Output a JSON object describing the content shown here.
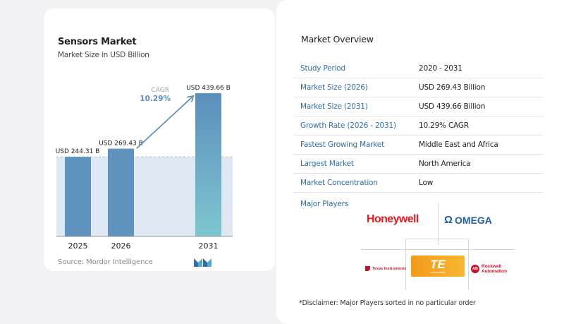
{
  "chart_data": {
    "type": "bar",
    "title": "Sensors Market",
    "subtitle": "Market Size in USD Billion",
    "categories": [
      "2025",
      "2026",
      "2031"
    ],
    "values": [
      244.31,
      269.43,
      439.66
    ],
    "value_labels": [
      "USD 244.31 B",
      "USD 269.43 B",
      "USD 439.66 B"
    ],
    "cagr_label": "CAGR",
    "cagr_value": "10.29%",
    "xlabel": "",
    "ylabel": "",
    "ylim": [
      0,
      439.66
    ],
    "grid": false,
    "colors": {
      "bar": "#5f93bd",
      "bar_2031_top": "#5b8fbc",
      "bar_2031_bottom": "#7ec6cf",
      "band": "#dde8f2",
      "arrow": "#5b8fbc",
      "cagr_label": "#9aa3ad",
      "cagr_value": "#5b8fbc"
    }
  },
  "source": "Source:  Mordor Intelligence",
  "brand_logo_icon": "mordor-intelligence-logo-icon",
  "overview": {
    "title": "Market Overview",
    "rows": [
      {
        "label": "Study Period",
        "value": "2020 - 2031"
      },
      {
        "label": "Market Size (2026)",
        "value": "USD 269.43 Billion"
      },
      {
        "label": "Market Size (2031)",
        "value": "USD 439.66 Billion"
      },
      {
        "label": "Growth Rate (2026 - 2031)",
        "value": "10.29% CAGR"
      },
      {
        "label": "Fastest Growing Market",
        "value": "Middle East and Africa"
      },
      {
        "label": "Largest Market",
        "value": "North America"
      },
      {
        "label": "Market Concentration",
        "value": "Low"
      }
    ]
  },
  "players": {
    "title": "Major Players",
    "logos": {
      "honeywell": "Honeywell",
      "omega_symbol": "Ω",
      "omega": "OMEGA",
      "ti": "Texas Instruments",
      "te": "TE",
      "te_sub": "connectivity",
      "rockwell_mark": "AB",
      "rockwell_line1": "Rockwell",
      "rockwell_line2": "Automation"
    }
  },
  "disclaimer": "*Disclaimer: Major Players sorted in no particular order"
}
